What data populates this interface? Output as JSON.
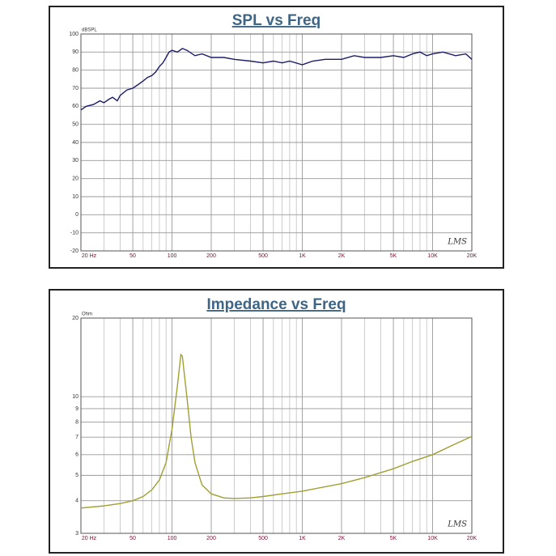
{
  "chart_data": [
    {
      "type": "line",
      "title": "SPL vs Freq",
      "ylabel": "dBSPL",
      "annotation": "LMS",
      "xscale": "log",
      "yscale": "linear",
      "grid": true,
      "color": "#1c1c6a",
      "xlim": [
        20,
        20000
      ],
      "ylim": [
        -20,
        100
      ],
      "xticks": [
        {
          "value": 20,
          "label": "20 Hz"
        },
        50,
        100,
        200,
        500,
        {
          "value": 1000,
          "label": "1K"
        },
        {
          "value": 2000,
          "label": "2K"
        },
        {
          "value": 5000,
          "label": "5K"
        },
        {
          "value": 10000,
          "label": "10K"
        },
        {
          "value": 20000,
          "label": "20K"
        }
      ],
      "xminorticks": [
        30,
        40,
        60,
        70,
        80,
        90,
        300,
        400,
        600,
        700,
        800,
        900,
        3000,
        4000,
        6000,
        7000,
        8000,
        9000
      ],
      "yticks": [
        -20,
        -10,
        0,
        10,
        20,
        30,
        40,
        50,
        60,
        70,
        80,
        90,
        100
      ],
      "x": [
        20,
        22,
        25,
        28,
        30,
        33,
        35,
        38,
        40,
        45,
        50,
        55,
        60,
        65,
        70,
        75,
        80,
        85,
        90,
        95,
        100,
        110,
        120,
        130,
        150,
        170,
        200,
        250,
        300,
        400,
        500,
        600,
        700,
        800,
        1000,
        1200,
        1500,
        2000,
        2500,
        3000,
        4000,
        5000,
        6000,
        7000,
        8000,
        9000,
        10000,
        12000,
        15000,
        18000,
        20000
      ],
      "values": [
        58,
        60,
        61,
        63,
        62,
        64,
        65,
        63,
        66,
        69,
        70,
        72,
        74,
        76,
        77,
        79,
        82,
        84,
        87,
        90,
        91,
        90,
        92,
        91,
        88,
        89,
        87,
        87,
        86,
        85,
        84,
        85,
        84,
        85,
        83,
        85,
        86,
        86,
        88,
        87,
        87,
        88,
        87,
        89,
        90,
        88,
        89,
        90,
        88,
        89,
        86
      ]
    },
    {
      "type": "line",
      "title": "Impedance vs Freq",
      "ylabel": "Ohm",
      "annotation": "LMS",
      "xscale": "log",
      "yscale": "log",
      "grid": true,
      "color": "#a0a032",
      "xlim": [
        20,
        20000
      ],
      "ylim": [
        3,
        20
      ],
      "xticks": [
        {
          "value": 20,
          "label": "20 Hz"
        },
        50,
        100,
        200,
        500,
        {
          "value": 1000,
          "label": "1K"
        },
        {
          "value": 2000,
          "label": "2K"
        },
        {
          "value": 5000,
          "label": "5K"
        },
        {
          "value": 10000,
          "label": "10K"
        },
        {
          "value": 20000,
          "label": "20K"
        }
      ],
      "xminorticks": [
        30,
        40,
        60,
        70,
        80,
        90,
        300,
        400,
        600,
        700,
        800,
        900,
        3000,
        4000,
        6000,
        7000,
        8000,
        9000
      ],
      "yticks": [
        3,
        4,
        5,
        6,
        7,
        8,
        9,
        10,
        20
      ],
      "x": [
        20,
        30,
        40,
        50,
        60,
        70,
        80,
        90,
        100,
        110,
        117,
        120,
        130,
        140,
        150,
        170,
        200,
        250,
        300,
        400,
        500,
        700,
        1000,
        2000,
        3000,
        5000,
        7000,
        10000,
        15000,
        20000
      ],
      "values": [
        3.75,
        3.82,
        3.9,
        4.0,
        4.15,
        4.4,
        4.8,
        5.6,
        7.5,
        11,
        14.5,
        14.3,
        10,
        7,
        5.6,
        4.6,
        4.25,
        4.1,
        4.08,
        4.1,
        4.15,
        4.25,
        4.35,
        4.65,
        4.9,
        5.3,
        5.65,
        6.0,
        6.6,
        7.05
      ]
    }
  ]
}
